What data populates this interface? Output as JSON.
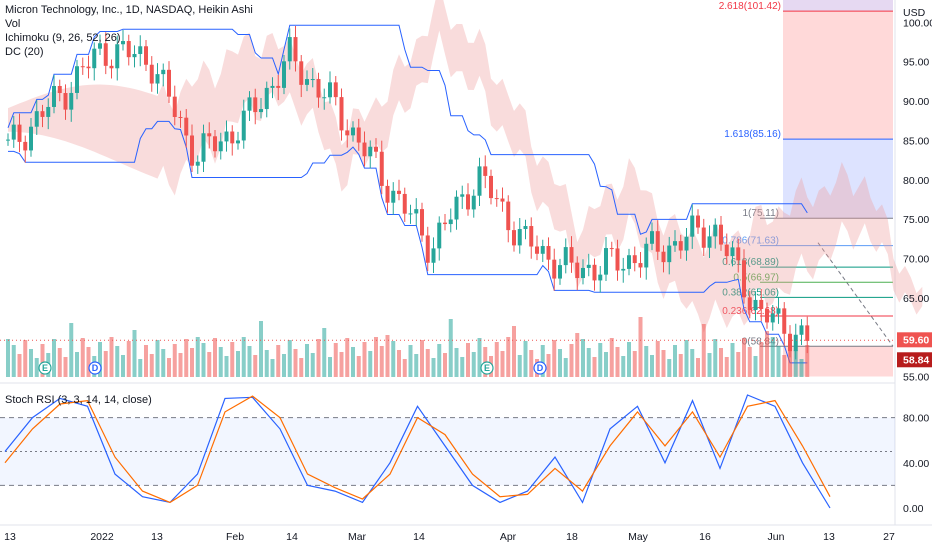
{
  "header": {
    "symbol_title": "Micron Technology, Inc., 1D, NASDAQ, Heikin Ashi",
    "vol_label": "Vol",
    "ichimoku_label": "Ichimoku (9, 26, 52, 26)",
    "dc_label": "DC (20)",
    "currency": "USD"
  },
  "stoch_label": "Stoch RSI (3, 3, 14, 14, close)",
  "colors": {
    "up": "#26a69a",
    "down": "#ef5350",
    "donchian": "#2962ff",
    "kijun": "#b71c1c",
    "tenkan": "#1e53e5",
    "lagging": "#43a047",
    "cloud_green": "#a5d6a7",
    "cloud_red": "#ef9a9a",
    "stoch_k": "#2962ff",
    "stoch_d": "#ff6d00"
  },
  "chart_data": [
    {
      "type": "candlestick",
      "title": "Micron Technology, Inc., 1D, NASDAQ, Heikin Ashi",
      "ylabel": "USD",
      "ylim": [
        55,
        103
      ],
      "y_ticks": [
        "55.00",
        "60.00",
        "65.00",
        "70.00",
        "75.00",
        "80.00",
        "85.00",
        "90.00",
        "95.00",
        "100.00"
      ],
      "x_tick_labels": [
        "13",
        "2022",
        "13",
        "Feb",
        "14",
        "Mar",
        "14",
        "Apr",
        "18",
        "May",
        "16",
        "Jun",
        "13",
        "27"
      ],
      "last_price": "59.60",
      "low_marker": "58.84",
      "series": [
        {
          "name": "MU",
          "ohlc_samples": [
            [
              "2021-12-13",
              84.5,
              86.0,
              82.0,
              84.0
            ],
            [
              "2021-12-27",
              88.0,
              90.5,
              87.0,
              90.0
            ],
            [
              "2022-01-05",
              94.0,
              98.5,
              92.0,
              96.5
            ],
            [
              "2022-01-13",
              95.0,
              97.0,
              93.5,
              95.5
            ],
            [
              "2022-01-21",
              86.0,
              87.5,
              82.0,
              83.0
            ],
            [
              "2022-02-01",
              82.5,
              88.0,
              81.0,
              87.0
            ],
            [
              "2022-02-14",
              90.0,
              96.5,
              89.0,
              95.5
            ],
            [
              "2022-02-24",
              88.0,
              90.0,
              86.5,
              89.0
            ],
            [
              "2022-03-07",
              86.0,
              87.0,
              79.0,
              80.0
            ],
            [
              "2022-03-16",
              73.5,
              74.5,
              69.5,
              71.5
            ],
            [
              "2022-03-29",
              79.0,
              81.5,
              78.0,
              80.5
            ],
            [
              "2022-04-08",
              74.0,
              74.5,
              71.0,
              72.0
            ],
            [
              "2022-04-22",
              70.5,
              71.0,
              68.0,
              68.5
            ],
            [
              "2022-05-06",
              68.0,
              70.0,
              67.0,
              69.5
            ],
            [
              "2022-05-20",
              70.0,
              72.5,
              68.5,
              71.5
            ],
            [
              "2022-06-01",
              73.5,
              75.2,
              72.0,
              74.0
            ],
            [
              "2022-06-10",
              66.0,
              67.0,
              62.5,
              63.0
            ],
            [
              "2022-06-13",
              63.5,
              63.5,
              58.84,
              59.6
            ]
          ]
        }
      ]
    },
    {
      "type": "line",
      "title": "Stoch RSI (3, 3, 14, 14, close)",
      "ylim": [
        0,
        100
      ],
      "y_ticks": [
        "0.00",
        "40.00",
        "80.00"
      ],
      "bands": [
        20,
        80
      ],
      "series": [
        {
          "name": "K",
          "values": [
            50,
            80,
            97,
            90,
            30,
            10,
            5,
            30,
            97,
            98,
            70,
            20,
            15,
            5,
            40,
            90,
            55,
            20,
            5,
            15,
            45,
            5,
            70,
            90,
            40,
            95,
            35,
            100,
            90,
            40,
            0
          ]
        },
        {
          "name": "D",
          "values": [
            40,
            70,
            92,
            95,
            45,
            15,
            5,
            20,
            85,
            99,
            80,
            30,
            18,
            8,
            30,
            80,
            65,
            30,
            10,
            12,
            35,
            15,
            55,
            85,
            55,
            85,
            45,
            90,
            95,
            55,
            10
          ]
        }
      ]
    }
  ],
  "fibonacci": {
    "labels": [
      "2.618(101.42)",
      "1.618(85.16)",
      "1(75.11)",
      "0.786(71.63)",
      "0.618(68.89)",
      "0.5(66.97)",
      "0.382(65.06)",
      "0.236(62.68)",
      "0(58.84)"
    ],
    "prices": [
      101.42,
      85.16,
      75.11,
      71.63,
      68.89,
      66.97,
      65.06,
      62.68,
      58.84
    ]
  },
  "events": [
    "E",
    "D",
    "E",
    "D"
  ]
}
